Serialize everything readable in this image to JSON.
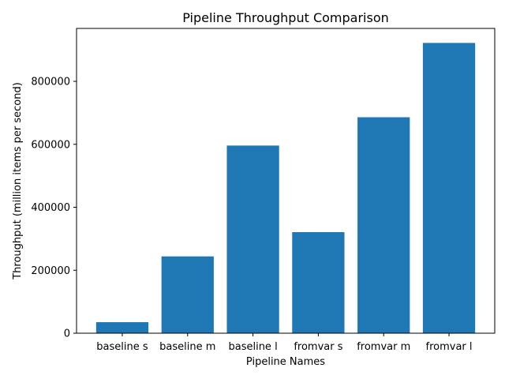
{
  "chart_data": {
    "type": "bar",
    "title": "Pipeline Throughput Comparison",
    "xlabel": "Pipeline Names",
    "ylabel": "Throughput (million items per second)",
    "categories": [
      "baseline s",
      "baseline m",
      "baseline l",
      "fromvar s",
      "fromvar m",
      "fromvar l"
    ],
    "values": [
      35000,
      244000,
      596000,
      321000,
      686000,
      922000
    ],
    "ylim": [
      0,
      968100
    ],
    "yticks": [
      0,
      200000,
      400000,
      600000,
      800000
    ],
    "ytick_labels": [
      "0",
      "200000",
      "400000",
      "600000",
      "800000"
    ],
    "grid": false,
    "legend": "none",
    "bar_color": "#1f77b4"
  }
}
